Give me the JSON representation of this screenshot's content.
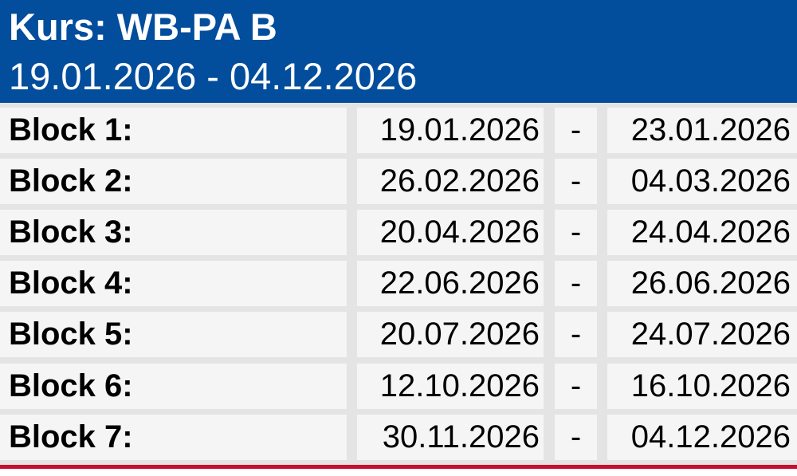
{
  "header": {
    "title": "Kurs: WB-PA B",
    "period": "19.01.2026 - 04.12.2026"
  },
  "blocks": [
    {
      "label": "Block 1:",
      "start": "19.01.2026",
      "sep": "-",
      "end": "23.01.2026"
    },
    {
      "label": "Block 2:",
      "start": "26.02.2026",
      "sep": "-",
      "end": "04.03.2026"
    },
    {
      "label": "Block 3:",
      "start": "20.04.2026",
      "sep": "-",
      "end": "24.04.2026"
    },
    {
      "label": "Block 4:",
      "start": "22.06.2026",
      "sep": "-",
      "end": "26.06.2026"
    },
    {
      "label": "Block 5:",
      "start": "20.07.2026",
      "sep": "-",
      "end": "24.07.2026"
    },
    {
      "label": "Block 6:",
      "start": "12.10.2026",
      "sep": "-",
      "end": "16.10.2026"
    },
    {
      "label": "Block 7:",
      "start": "30.11.2026",
      "sep": "-",
      "end": "04.12.2026"
    }
  ],
  "colors": {
    "header_background": "#024d9c",
    "header_text": "#ffffff",
    "cell_background": "#f5f5f5",
    "grid_background": "#e4e4e4",
    "accent_line": "#c8102e"
  }
}
